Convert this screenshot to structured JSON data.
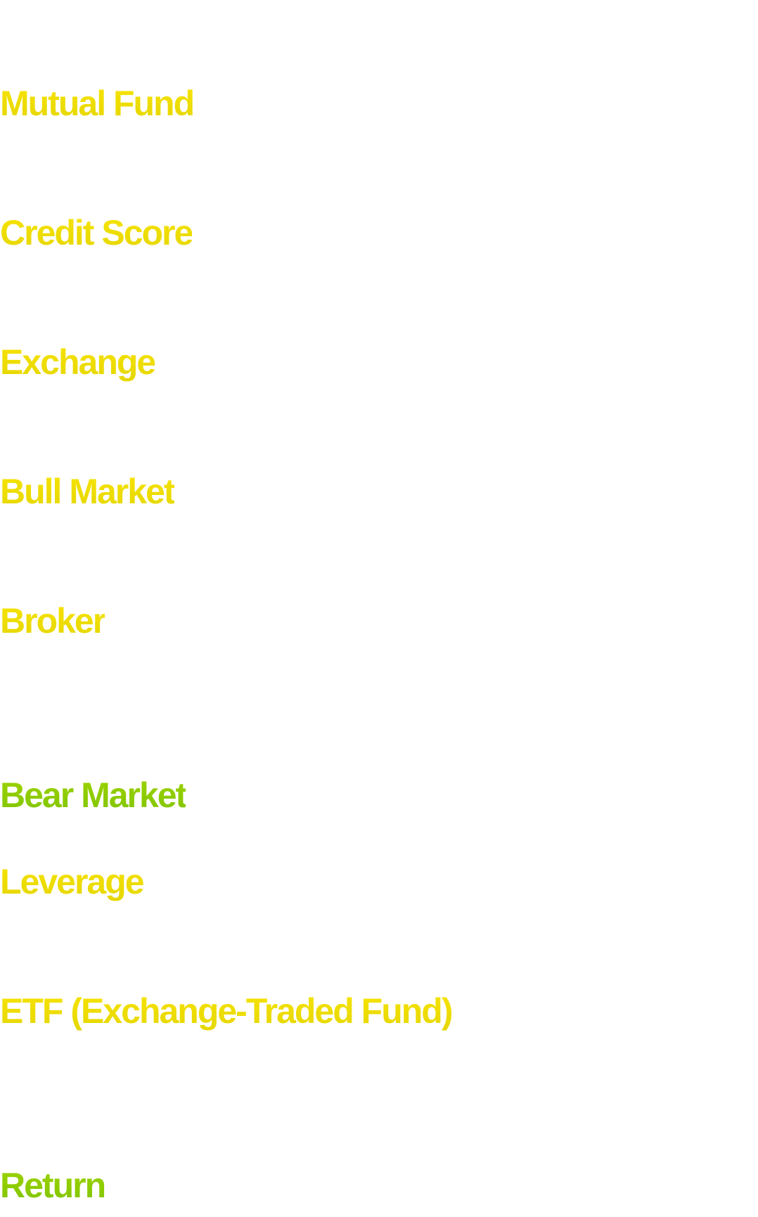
{
  "colors": {
    "primary_term": "#f2df00",
    "highlight_term": "#8fcc00",
    "background": "#ffffff"
  },
  "terms": [
    {
      "label": "Mutual Fund",
      "style": "yellow"
    },
    {
      "label": "Credit Score",
      "style": "yellow"
    },
    {
      "label": "Exchange",
      "style": "yellow"
    },
    {
      "label": "Bull Market",
      "style": "yellow"
    },
    {
      "label": "Broker",
      "style": "yellow"
    },
    {
      "label": "Bear Market",
      "style": "green"
    },
    {
      "label": "Leverage",
      "style": "yellow"
    },
    {
      "label": "ETF (Exchange-Traded Fund)",
      "style": "yellow"
    },
    {
      "label": "Return",
      "style": "green"
    }
  ]
}
